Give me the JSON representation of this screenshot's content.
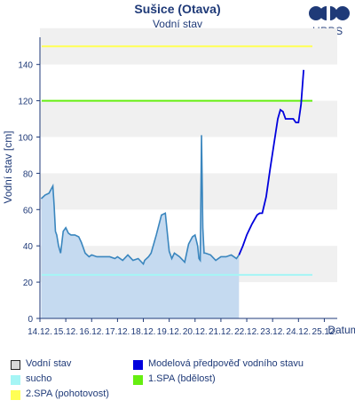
{
  "header": {
    "title": "Sušice (Otava)",
    "subtitle": "Vodní stav",
    "logo_text": "HPPS"
  },
  "colors": {
    "observed_line": "#3a86be",
    "observed_fill": "#c5daf0",
    "forecast_line": "#0000dd",
    "sucho": "#a5f5f5",
    "spa1": "#66ee11",
    "spa2": "#ffff55",
    "band": "#f0f0f0",
    "axis": "#1f3a78"
  },
  "chart_data": {
    "type": "line",
    "ylabel": "Vodní stav [cm]",
    "xlabel": "Datum",
    "ylim": [
      0,
      150
    ],
    "y_ticks": [
      "0",
      "20",
      "40",
      "60",
      "80",
      "100",
      "120",
      "140"
    ],
    "x_tick_labels": [
      "14.12.",
      "15.12.",
      "16.12.",
      "17.12.",
      "18.12.",
      "19.12.",
      "20.12.",
      "21.12.",
      "22.12.",
      "23.12.",
      "24.12.",
      "25.12."
    ],
    "x_range_days": [
      0,
      11.5
    ],
    "thresholds": [
      {
        "name": "sucho",
        "value": 24
      },
      {
        "name": "1.SPA (bdělost)",
        "value": 120
      },
      {
        "name": "2.SPA (pohotovost)",
        "value": 150
      }
    ],
    "series": [
      {
        "name": "Vodní stav",
        "x": [
          0.05,
          0.2,
          0.35,
          0.5,
          0.55,
          0.6,
          0.65,
          0.72,
          0.8,
          0.9,
          1.0,
          1.1,
          1.2,
          1.35,
          1.5,
          1.6,
          1.75,
          1.9,
          2.0,
          2.2,
          2.5,
          2.7,
          2.9,
          3.0,
          3.2,
          3.4,
          3.6,
          3.8,
          4.0,
          4.05,
          4.2,
          4.3,
          4.5,
          4.7,
          4.85,
          5.0,
          5.1,
          5.2,
          5.4,
          5.6,
          5.75,
          5.9,
          6.0,
          6.1,
          6.15,
          6.2,
          6.25,
          6.3,
          6.35,
          6.4,
          6.6,
          6.8,
          7.0,
          7.2,
          7.4,
          7.5,
          7.6,
          7.7
        ],
        "y": [
          66,
          68,
          69,
          73,
          62,
          48,
          46,
          40,
          36,
          48,
          50,
          47,
          46,
          46,
          45,
          42,
          36,
          34,
          35,
          34,
          34,
          34,
          33,
          34,
          32,
          35,
          32,
          33,
          30,
          32,
          34,
          36,
          46,
          57,
          58,
          37,
          33,
          36,
          34,
          31,
          41,
          45,
          46,
          40,
          33,
          32,
          101,
          50,
          36,
          36,
          35,
          32,
          34,
          34,
          35,
          34,
          33,
          35
        ]
      },
      {
        "name": "Modelová předpověď vodního stavu",
        "x": [
          7.7,
          7.85,
          8.0,
          8.2,
          8.4,
          8.5,
          8.6,
          8.75,
          8.9,
          9.05,
          9.2,
          9.3,
          9.4,
          9.5,
          9.65,
          9.8,
          9.9,
          10.0,
          10.1,
          10.2
        ],
        "y": [
          35,
          40,
          46,
          52,
          57,
          58,
          58,
          67,
          82,
          96,
          110,
          115,
          114,
          110,
          110,
          110,
          108,
          108,
          118,
          137
        ]
      }
    ],
    "legend": [
      {
        "label": "Vodní stav",
        "key": "observed"
      },
      {
        "label": "Modelová předpověď vodního stavu",
        "key": "forecast"
      },
      {
        "label": "sucho",
        "key": "sucho"
      },
      {
        "label": "1.SPA (bdělost)",
        "key": "spa1"
      },
      {
        "label": "2.SPA (pohotovost)",
        "key": "spa2"
      }
    ]
  }
}
